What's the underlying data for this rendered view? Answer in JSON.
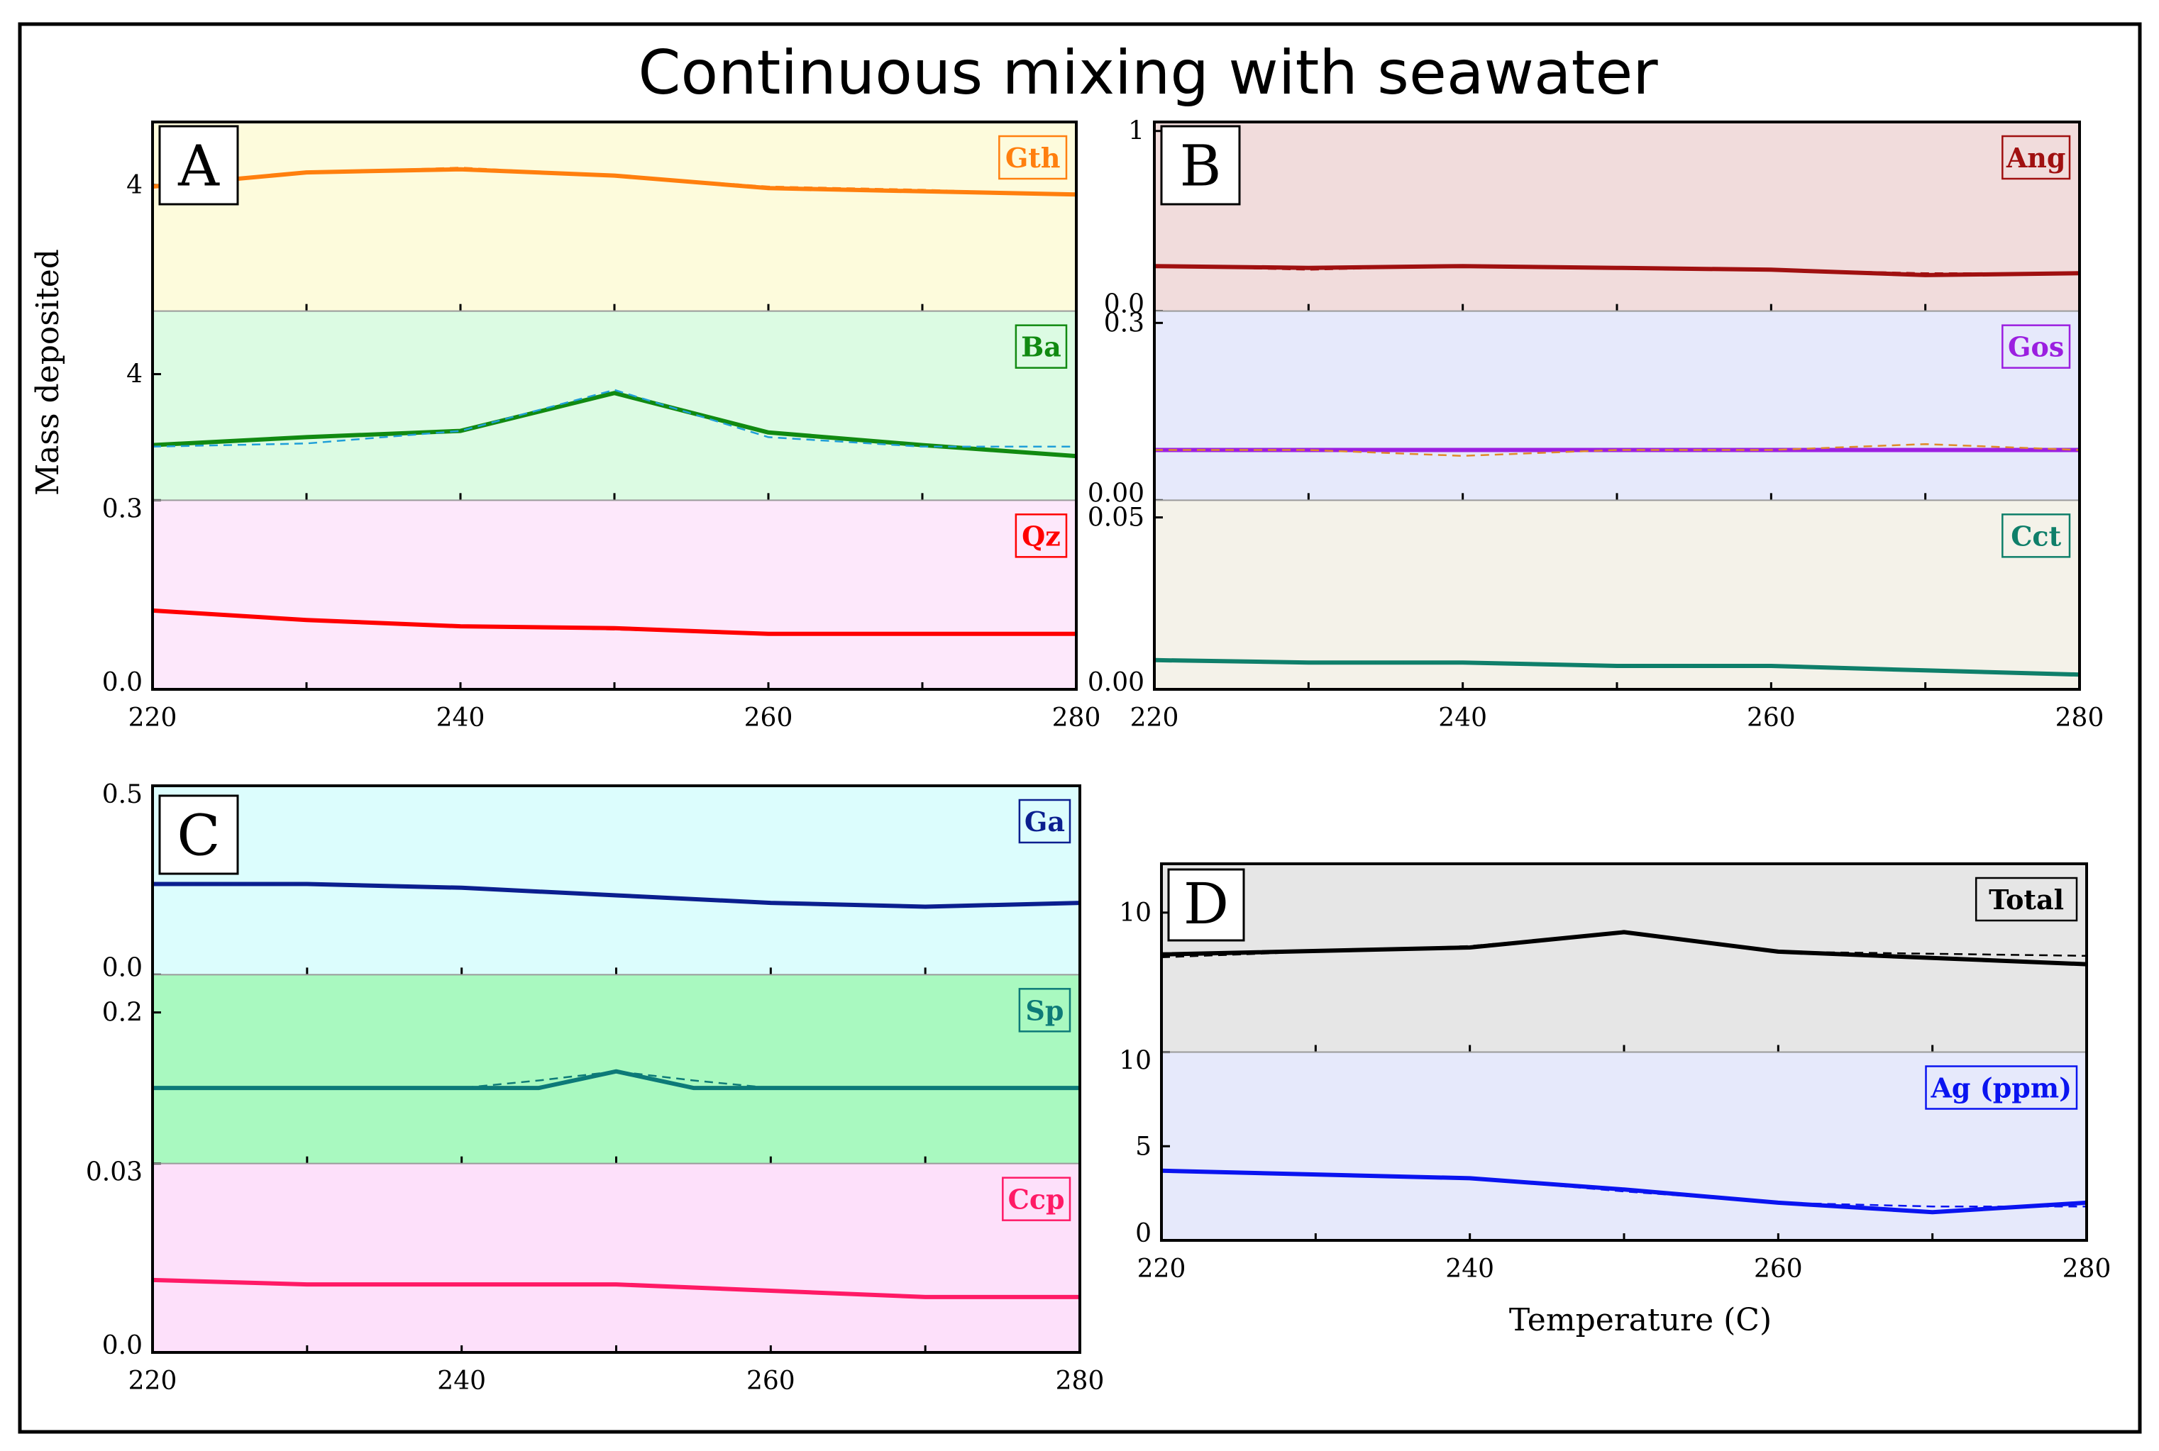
{
  "title": "Continuous mixing with seawater",
  "ylabel": "Mass deposited",
  "xlabel": "Temperature (C)",
  "chart_data": [
    {
      "type": "line",
      "panel": "A",
      "x_ticks": [
        "220",
        "240",
        "260",
        "280"
      ],
      "xlim": [
        220,
        280
      ],
      "subplots": [
        {
          "label": "Gth",
          "color": "#ff7f0e",
          "bg": "#fdfbdc",
          "y_ticks": [
            {
              "v": 4,
              "t": "4"
            }
          ],
          "ylim": [
            0,
            6
          ],
          "series": [
            {
              "name": "solid",
              "x": [
                220,
                230,
                240,
                250,
                260,
                270,
                280
              ],
              "y": [
                3.95,
                4.4,
                4.5,
                4.3,
                3.9,
                3.8,
                3.7
              ]
            },
            {
              "name": "dashed",
              "x": [
                220,
                230,
                240,
                250,
                260,
                270,
                280
              ],
              "y": [
                3.95,
                4.4,
                4.55,
                4.3,
                3.95,
                3.85,
                3.7
              ]
            }
          ]
        },
        {
          "label": "Ba",
          "color": "#118a11",
          "bg": "#dcfbe3",
          "y_ticks": [
            {
              "v": 4,
              "t": "4"
            }
          ],
          "ylim": [
            0,
            6
          ],
          "series": [
            {
              "name": "solid",
              "x": [
                220,
                230,
                240,
                250,
                260,
                270,
                280
              ],
              "y": [
                1.75,
                2.0,
                2.2,
                3.4,
                2.15,
                1.75,
                1.4
              ]
            },
            {
              "name": "dashed",
              "x": [
                220,
                230,
                240,
                250,
                260,
                270,
                280
              ],
              "y": [
                1.7,
                1.8,
                2.2,
                3.5,
                2.0,
                1.7,
                1.7
              ]
            }
          ]
        },
        {
          "label": "Qz",
          "color": "#ff0000",
          "bg": "#fde8fb",
          "y_ticks": [
            {
              "v": 0.0,
              "t": "0.0"
            },
            {
              "v": 0.3,
              "t": "0.3"
            }
          ],
          "ylim": [
            0,
            0.3
          ],
          "series": [
            {
              "name": "solid",
              "x": [
                220,
                230,
                240,
                250,
                260,
                270,
                280
              ],
              "y": [
                0.125,
                0.11,
                0.1,
                0.097,
                0.088,
                0.088,
                0.088
              ]
            },
            {
              "name": "dashed",
              "x": [
                220,
                230,
                240,
                250,
                260,
                270,
                280
              ],
              "y": [
                0.125,
                0.11,
                0.1,
                0.095,
                0.088,
                0.088,
                0.088
              ]
            }
          ]
        }
      ]
    },
    {
      "type": "line",
      "panel": "B",
      "x_ticks": [
        "220",
        "240",
        "260",
        "280"
      ],
      "xlim": [
        220,
        280
      ],
      "subplots": [
        {
          "label": "Ang",
          "color": "#a01010",
          "bg": "#f1dcdc",
          "y_ticks": [
            {
              "v": 0.0,
              "t": "0.0"
            },
            {
              "v": 1,
              "t": "1"
            }
          ],
          "ylim": [
            0,
            1.05
          ],
          "series": [
            {
              "name": "solid",
              "x": [
                220,
                230,
                240,
                250,
                260,
                270,
                280
              ],
              "y": [
                0.25,
                0.24,
                0.25,
                0.24,
                0.23,
                0.2,
                0.21
              ]
            },
            {
              "name": "dashed",
              "x": [
                220,
                230,
                240,
                250,
                260,
                270,
                280
              ],
              "y": [
                0.25,
                0.23,
                0.25,
                0.24,
                0.23,
                0.21,
                0.21
              ]
            }
          ]
        },
        {
          "label": "Gos",
          "color": "#9b1fe0",
          "bg": "#e6e9fb",
          "y_ticks": [
            {
              "v": 0.0,
              "t": "0.00"
            },
            {
              "v": 0.3,
              "t": "0.3"
            }
          ],
          "ylim": [
            0,
            0.32
          ],
          "series": [
            {
              "name": "solid",
              "x": [
                220,
                230,
                240,
                250,
                260,
                270,
                280
              ],
              "y": [
                0.085,
                0.085,
                0.085,
                0.085,
                0.085,
                0.085,
                0.085
              ]
            },
            {
              "name": "dashed",
              "x": [
                220,
                230,
                240,
                250,
                260,
                270,
                280
              ],
              "y": [
                0.085,
                0.085,
                0.075,
                0.085,
                0.085,
                0.095,
                0.085
              ]
            }
          ]
        },
        {
          "label": "Cct",
          "color": "#0f7f6a",
          "bg": "#f4f2e9",
          "y_ticks": [
            {
              "v": 0.0,
              "t": "0.00"
            },
            {
              "v": 0.05,
              "t": "0.05"
            }
          ],
          "ylim": [
            0,
            0.055
          ],
          "series": [
            {
              "name": "solid",
              "x": [
                220,
                230,
                240,
                250,
                260,
                270,
                280
              ],
              "y": [
                0.0085,
                0.0078,
                0.0078,
                0.0068,
                0.0068,
                0.0055,
                0.0043
              ]
            },
            {
              "name": "dashed",
              "x": [
                220,
                230,
                240,
                250,
                260,
                270,
                280
              ],
              "y": [
                0.0085,
                0.0078,
                0.0078,
                0.0068,
                0.0068,
                0.0055,
                0.0043
              ]
            }
          ]
        }
      ]
    },
    {
      "type": "line",
      "panel": "C",
      "x_ticks": [
        "220",
        "240",
        "260",
        "280"
      ],
      "xlim": [
        220,
        280
      ],
      "subplots": [
        {
          "label": "Ga",
          "color": "#0b1f8f",
          "bg": "#dcfdfd",
          "y_ticks": [
            {
              "v": 0.0,
              "t": "0.0"
            },
            {
              "v": 0.5,
              "t": "0.5"
            }
          ],
          "ylim": [
            0,
            0.5
          ],
          "series": [
            {
              "name": "solid",
              "x": [
                220,
                230,
                240,
                250,
                260,
                270,
                280
              ],
              "y": [
                0.24,
                0.24,
                0.23,
                0.21,
                0.19,
                0.18,
                0.19
              ]
            },
            {
              "name": "dashed",
              "x": [
                220,
                230,
                240,
                250,
                260,
                270,
                280
              ],
              "y": [
                0.24,
                0.24,
                0.23,
                0.21,
                0.19,
                0.18,
                0.19
              ]
            }
          ]
        },
        {
          "label": "Sp",
          "color": "#0d7a78",
          "bg": "#a9f9c0",
          "y_ticks": [
            {
              "v": 0.2,
              "t": "0.2"
            }
          ],
          "ylim": [
            0,
            0.25
          ],
          "series": [
            {
              "name": "solid",
              "x": [
                220,
                240,
                245,
                250,
                255,
                260,
                280
              ],
              "y": [
                0.1,
                0.1,
                0.1,
                0.122,
                0.1,
                0.1,
                0.1
              ]
            },
            {
              "name": "dashed",
              "x": [
                220,
                240,
                245,
                250,
                255,
                260,
                280
              ],
              "y": [
                0.1,
                0.1,
                0.11,
                0.122,
                0.11,
                0.1,
                0.1
              ]
            }
          ]
        },
        {
          "label": "Ccp",
          "color": "#ff1a66",
          "bg": "#fde0fa",
          "y_ticks": [
            {
              "v": 0.0,
              "t": "0.0"
            },
            {
              "v": 0.03,
              "t": "0.03"
            }
          ],
          "ylim": [
            0,
            0.03
          ],
          "series": [
            {
              "name": "solid",
              "x": [
                220,
                230,
                240,
                250,
                260,
                270,
                280
              ],
              "y": [
                0.0115,
                0.0108,
                0.0108,
                0.0108,
                0.0098,
                0.0088,
                0.0088
              ]
            },
            {
              "name": "dashed",
              "x": [
                220,
                230,
                240,
                250,
                260,
                270,
                280
              ],
              "y": [
                0.0115,
                0.0108,
                0.0108,
                0.0108,
                0.0098,
                0.0088,
                0.0088
              ]
            }
          ]
        }
      ]
    },
    {
      "type": "line",
      "panel": "D",
      "x_ticks": [
        "220",
        "240",
        "260",
        "280"
      ],
      "xlim": [
        220,
        280
      ],
      "subplots": [
        {
          "label": "Total",
          "color": "#000000",
          "bg": "#e6e6e6",
          "y_ticks": [
            {
              "v": 10,
              "t": "10"
            }
          ],
          "ylim": [
            0,
            13.5
          ],
          "series": [
            {
              "name": "solid",
              "x": [
                220,
                240,
                250,
                260,
                280
              ],
              "y": [
                7.0,
                7.5,
                8.6,
                7.2,
                6.3
              ]
            },
            {
              "name": "dashed",
              "x": [
                220,
                240,
                250,
                260,
                280
              ],
              "y": [
                6.8,
                7.6,
                8.6,
                7.2,
                6.9
              ]
            }
          ]
        },
        {
          "label": "Ag (ppm)",
          "color": "#0a14f0",
          "bg": "#e6e9fb",
          "y_ticks": [
            {
              "v": 0,
              "t": "0"
            },
            {
              "v": 5,
              "t": "5"
            },
            {
              "v": 10,
              "t": "10"
            }
          ],
          "ylim": [
            0,
            10
          ],
          "series": [
            {
              "name": "solid",
              "x": [
                220,
                240,
                250,
                260,
                270,
                280
              ],
              "y": [
                3.7,
                3.3,
                2.7,
                2.0,
                1.5,
                2.0
              ]
            },
            {
              "name": "dashed",
              "x": [
                220,
                240,
                250,
                260,
                270,
                280
              ],
              "y": [
                3.7,
                3.3,
                2.6,
                2.0,
                1.8,
                1.8
              ]
            }
          ]
        }
      ]
    }
  ]
}
